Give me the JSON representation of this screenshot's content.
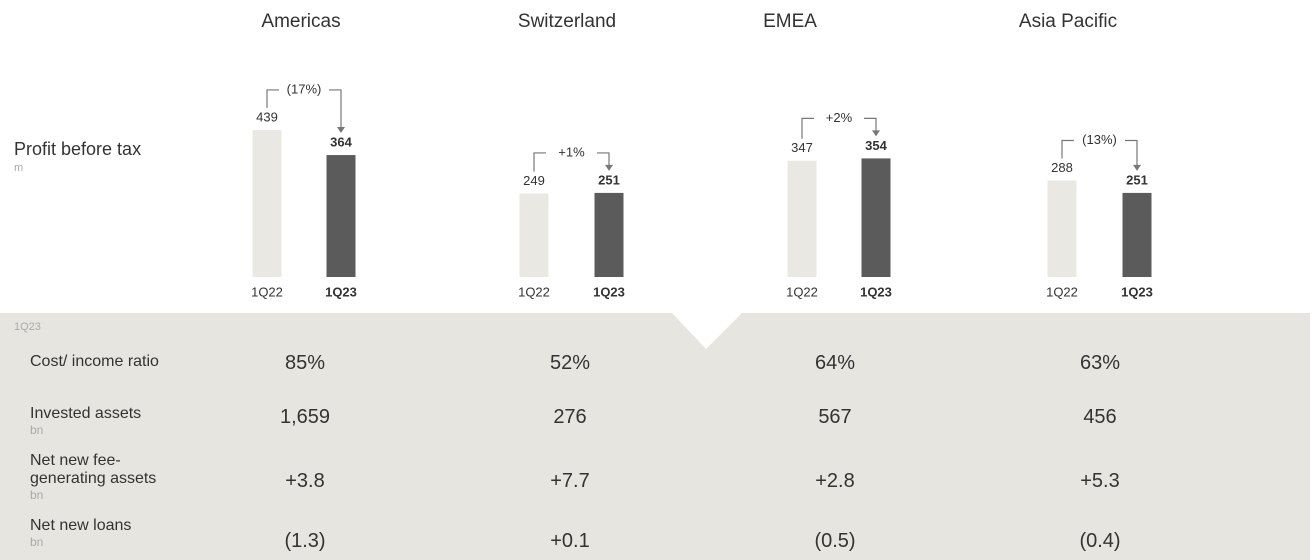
{
  "chart_data": [
    {
      "type": "bar",
      "title": "Americas",
      "categories": [
        "1Q22",
        "1Q23"
      ],
      "values": [
        439,
        364
      ],
      "annotation": "(17%)",
      "colors": [
        "#e9e8e2",
        "#5a5b5a"
      ]
    },
    {
      "type": "bar",
      "title": "Switzerland",
      "categories": [
        "1Q22",
        "1Q23"
      ],
      "values": [
        249,
        251
      ],
      "annotation": "+1%",
      "colors": [
        "#e9e8e2",
        "#5a5b5a"
      ]
    },
    {
      "type": "bar",
      "title": "EMEA",
      "categories": [
        "1Q22",
        "1Q23"
      ],
      "values": [
        347,
        354
      ],
      "annotation": "+2%",
      "colors": [
        "#e9e8e2",
        "#5a5b5a"
      ]
    },
    {
      "type": "bar",
      "title": "Asia Pacific",
      "categories": [
        "1Q22",
        "1Q23"
      ],
      "values": [
        288,
        251
      ],
      "annotation": "(13%)",
      "colors": [
        "#e9e8e2",
        "#5a5b5a"
      ]
    }
  ],
  "metric": {
    "label": "Profit before tax",
    "unit": "m"
  },
  "table": {
    "period": "1Q23",
    "rows": [
      {
        "label": "Cost/ income ratio",
        "cells": [
          "85%",
          "52%",
          "64%",
          "63%"
        ]
      },
      {
        "label": "Invested assets",
        "unit": "bn",
        "cells": [
          "1,659",
          "276",
          "567",
          "456"
        ]
      },
      {
        "label": "Net new fee-generating assets",
        "unit": "bn",
        "cells": [
          "+3.8",
          "+7.7",
          "+2.8",
          "+5.3"
        ]
      },
      {
        "label": "Net new loans",
        "unit": "bn",
        "cells": [
          "(1.3)",
          "+0.1",
          "(0.5)",
          "(0.4)"
        ]
      }
    ]
  }
}
